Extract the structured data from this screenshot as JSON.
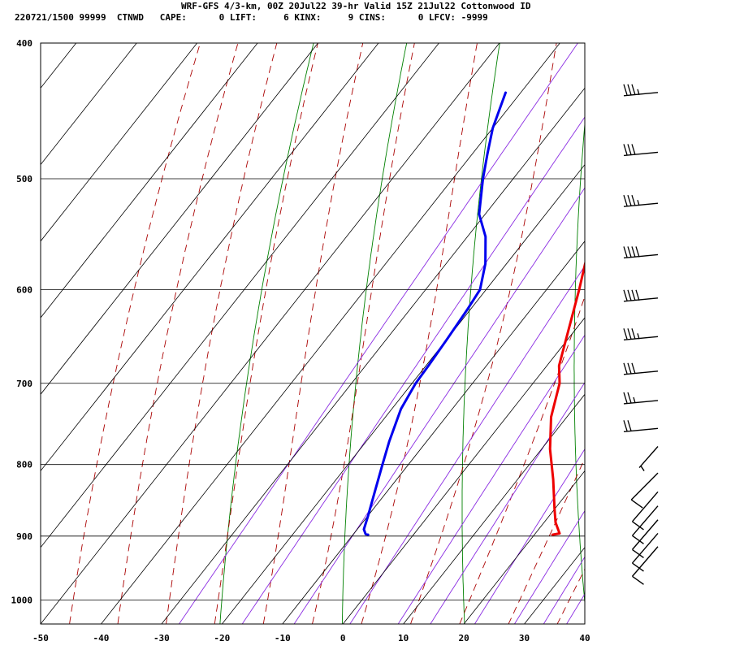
{
  "header": {
    "title": "WRF-GFS 4/3-km, 00Z 20Jul22 39-hr Valid 15Z 21Jul22 Cottonwood ID",
    "stats": "220721/1500 99999  CTNWD   CAPE:      0 LIFT:     6 KINX:     9 CINS:      0 LFCV: -9999"
  },
  "colors": {
    "temperature": "#ee0000",
    "dewpoint": "#0000ee",
    "isotherm_grid": "#000000",
    "dry_adiabat": "#008000",
    "moist_adiabat": "#aa0000",
    "mixing_ratio": "#8a2be2",
    "barb": "#000000"
  },
  "chart_data": {
    "type": "skew-t",
    "x_ticks": [
      -50,
      -40,
      -30,
      -20,
      -10,
      0,
      10,
      20,
      30,
      40
    ],
    "y_ticks": [
      400,
      500,
      600,
      700,
      800,
      900,
      1000
    ],
    "xlim": [
      -50,
      40
    ],
    "ylim": [
      1040,
      400
    ],
    "series": [
      {
        "key": "temperature",
        "points": [
          {
            "p": 434,
            "t": -17.5
          },
          {
            "p": 470,
            "t": -15.2
          },
          {
            "p": 500,
            "t": -13.0
          },
          {
            "p": 540,
            "t": -10.0
          },
          {
            "p": 575,
            "t": -7.0
          },
          {
            "p": 600,
            "t": -4.6
          },
          {
            "p": 640,
            "t": -1.2
          },
          {
            "p": 680,
            "t": 2.0
          },
          {
            "p": 700,
            "t": 4.4
          },
          {
            "p": 740,
            "t": 7.4
          },
          {
            "p": 780,
            "t": 11.4
          },
          {
            "p": 820,
            "t": 15.9
          },
          {
            "p": 860,
            "t": 19.9
          },
          {
            "p": 880,
            "t": 21.9
          },
          {
            "p": 893,
            "t": 23.6
          },
          {
            "p": 896,
            "t": 24.0
          },
          {
            "p": 898,
            "t": 23.0
          }
        ]
      },
      {
        "key": "dewpoint",
        "points": [
          {
            "p": 434,
            "t": -42.5
          },
          {
            "p": 460,
            "t": -40.0
          },
          {
            "p": 480,
            "t": -37.5
          },
          {
            "p": 500,
            "t": -35.0
          },
          {
            "p": 530,
            "t": -31.0
          },
          {
            "p": 550,
            "t": -27.0
          },
          {
            "p": 575,
            "t": -23.5
          },
          {
            "p": 600,
            "t": -21.0
          },
          {
            "p": 620,
            "t": -20.5
          },
          {
            "p": 650,
            "t": -20.0
          },
          {
            "p": 680,
            "t": -19.6
          },
          {
            "p": 700,
            "t": -19.4
          },
          {
            "p": 730,
            "t": -18.5
          },
          {
            "p": 770,
            "t": -16.2
          },
          {
            "p": 800,
            "t": -14.3
          },
          {
            "p": 840,
            "t": -11.8
          },
          {
            "p": 870,
            "t": -10.0
          },
          {
            "p": 890,
            "t": -8.9
          },
          {
            "p": 897,
            "t": -8.0
          },
          {
            "p": 898,
            "t": -7.5
          }
        ]
      }
    ],
    "wind_barbs": [
      {
        "p": 435,
        "speed": 35
      },
      {
        "p": 480,
        "speed": 30
      },
      {
        "p": 522,
        "speed": 35
      },
      {
        "p": 568,
        "speed": 40
      },
      {
        "p": 610,
        "speed": 40
      },
      {
        "p": 650,
        "speed": 35
      },
      {
        "p": 688,
        "speed": 30
      },
      {
        "p": 722,
        "speed": 25
      },
      {
        "p": 756,
        "speed": 20
      },
      {
        "p": 785,
        "speed": 5
      },
      {
        "p": 820,
        "speed": 10
      },
      {
        "p": 848,
        "speed": 10
      },
      {
        "p": 868,
        "speed": 10
      },
      {
        "p": 888,
        "speed": 10
      },
      {
        "p": 908,
        "speed": 10
      },
      {
        "p": 928,
        "speed": 10
      }
    ]
  }
}
